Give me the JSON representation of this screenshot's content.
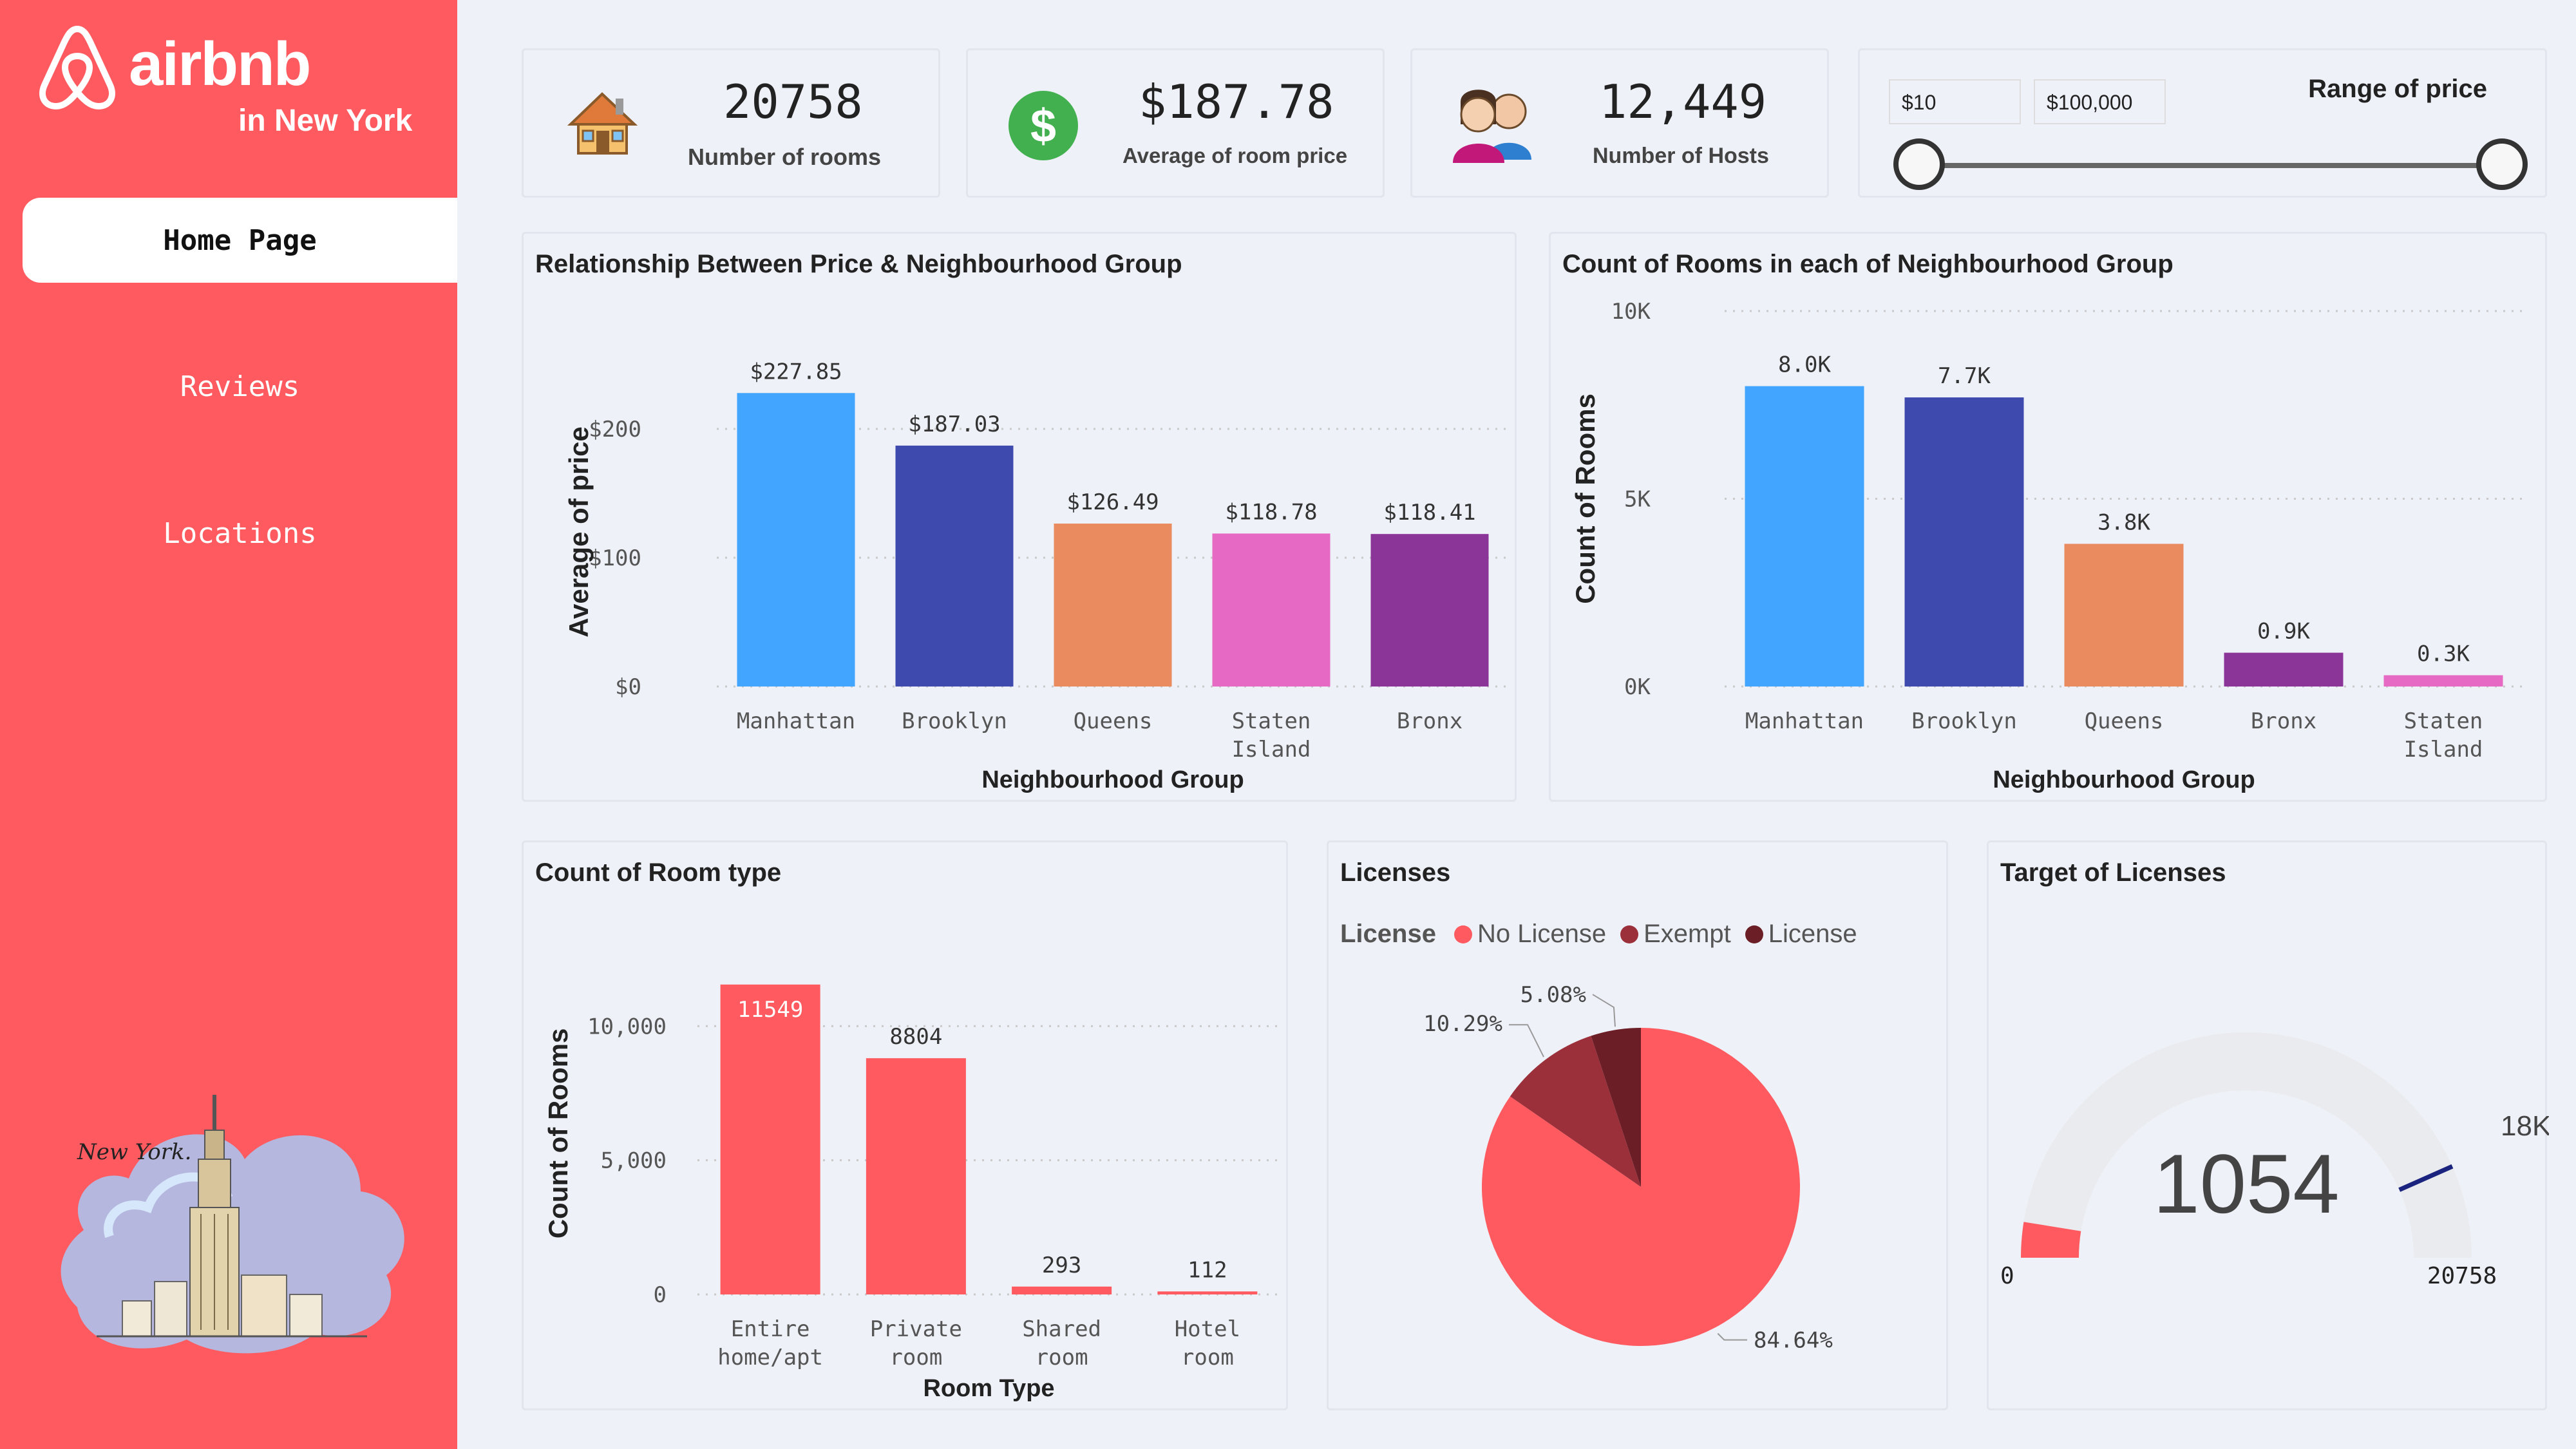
{
  "brand": {
    "name": "airbnb",
    "subtitle": "in New York",
    "illustration_text": "New York."
  },
  "nav": {
    "home": "Home Page",
    "reviews": "Reviews",
    "locations": "Locations"
  },
  "kpis": {
    "rooms": {
      "value": "20758",
      "label": "Number of rooms"
    },
    "avg_price": {
      "value": "$187.78",
      "label": "Average of room price"
    },
    "hosts": {
      "value": "12,449",
      "label": "Number of Hosts"
    }
  },
  "price_range": {
    "title": "Range of price",
    "min": "$10",
    "max": "$100,000"
  },
  "licenses_legend": {
    "title": "License",
    "items": [
      "No License",
      "Exempt",
      "License"
    ]
  },
  "gauge": {
    "title": "Target of Licenses",
    "value": "1054",
    "min": "0",
    "max": "20758",
    "target": "18K",
    "value_num": 1054,
    "max_num": 20758,
    "target_num": 18000
  },
  "colors": {
    "brand": "#ff5a5f",
    "manhattan": "#42a5ff",
    "brooklyn": "#3f4aaf",
    "queens": "#e98b5f",
    "staten": "#e66ac3",
    "bronx": "#8c3599",
    "room": "#ff5a5f",
    "exempt": "#9b2f3a",
    "license": "#6b1e26"
  },
  "chart_data": [
    {
      "type": "bar",
      "title": "Relationship Between Price & Neighbourhood Group",
      "xlabel": "Neighbourhood Group",
      "ylabel": "Average of price",
      "categories": [
        "Manhattan",
        "Brooklyn",
        "Queens",
        "Staten Island",
        "Bronx"
      ],
      "values": [
        227.85,
        187.03,
        126.49,
        118.78,
        118.41
      ],
      "data_labels": [
        "$227.85",
        "$187.03",
        "$126.49",
        "$118.78",
        "$118.41"
      ],
      "yticks": [
        "$0",
        "$100",
        "$200"
      ],
      "ylim": [
        0,
        240
      ]
    },
    {
      "type": "bar",
      "title": "Count of Rooms in each of Neighbourhood Group",
      "xlabel": "Neighbourhood Group",
      "ylabel": "Count of Rooms",
      "categories": [
        "Manhattan",
        "Brooklyn",
        "Queens",
        "Bronx",
        "Staten Island"
      ],
      "values": [
        8000,
        7700,
        3800,
        900,
        300
      ],
      "data_labels": [
        "8.0K",
        "7.7K",
        "3.8K",
        "0.9K",
        "0.3K"
      ],
      "yticks": [
        "0K",
        "5K",
        "10K"
      ],
      "ylim": [
        0,
        10000
      ]
    },
    {
      "type": "bar",
      "title": "Count of Room type",
      "xlabel": "Room Type",
      "ylabel": "Count of Rooms",
      "categories": [
        "Entire home/apt",
        "Private room",
        "Shared room",
        "Hotel room"
      ],
      "values": [
        11549,
        8804,
        293,
        112
      ],
      "data_labels": [
        "11549",
        "8804",
        "293",
        "112"
      ],
      "yticks": [
        "0",
        "5,000",
        "10,000"
      ],
      "ylim": [
        0,
        12000
      ]
    },
    {
      "type": "pie",
      "title": "Licenses",
      "categories": [
        "No License",
        "Exempt",
        "License"
      ],
      "values": [
        84.64,
        10.29,
        5.08
      ],
      "data_labels": [
        "84.64%",
        "10.29%",
        "5.08%"
      ]
    }
  ]
}
